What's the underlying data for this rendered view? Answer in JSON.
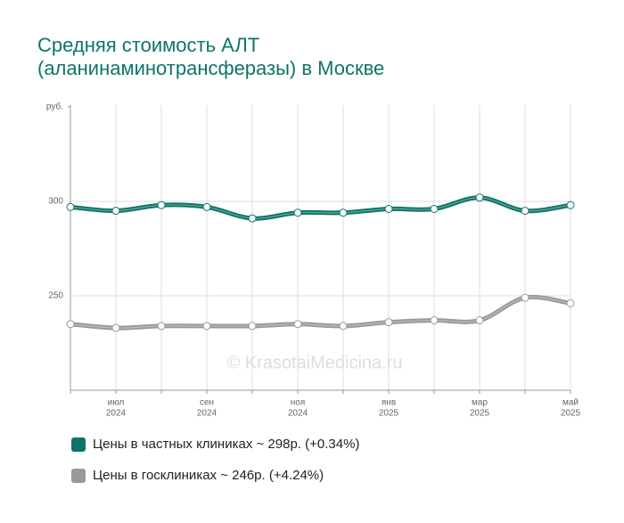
{
  "chart_data": {
    "type": "line",
    "title": [
      "Средняя стоимость АЛТ",
      "(аланинаминотрансферазы) в Москве"
    ],
    "watermark": "© KrasotaiMedicina.ru",
    "categories": [
      null,
      [
        "июл",
        "2024"
      ],
      null,
      [
        "сен",
        "2024"
      ],
      null,
      [
        "ноя",
        "2024"
      ],
      null,
      [
        "янв",
        "2025"
      ],
      null,
      [
        "мар",
        "2025"
      ],
      null,
      [
        "май",
        "2025"
      ]
    ],
    "series": [
      {
        "name": "Цены в частных клиниках ~ 298р. (+0.34%)",
        "color": "#0e7469",
        "values": [
          297,
          295,
          298,
          297,
          291,
          294,
          294,
          296,
          296,
          302,
          295,
          298
        ]
      },
      {
        "name": "Цены в госклиниках ~ 246р. (+4.24%)",
        "color": "#999999",
        "values": [
          235,
          233,
          234,
          234,
          234,
          235,
          234,
          236,
          237,
          237,
          249,
          246
        ]
      }
    ],
    "ylim": [
      200,
      350
    ],
    "yticks": [
      250,
      300,
      {
        "value": 350,
        "label": "руб."
      }
    ],
    "grid": true
  }
}
